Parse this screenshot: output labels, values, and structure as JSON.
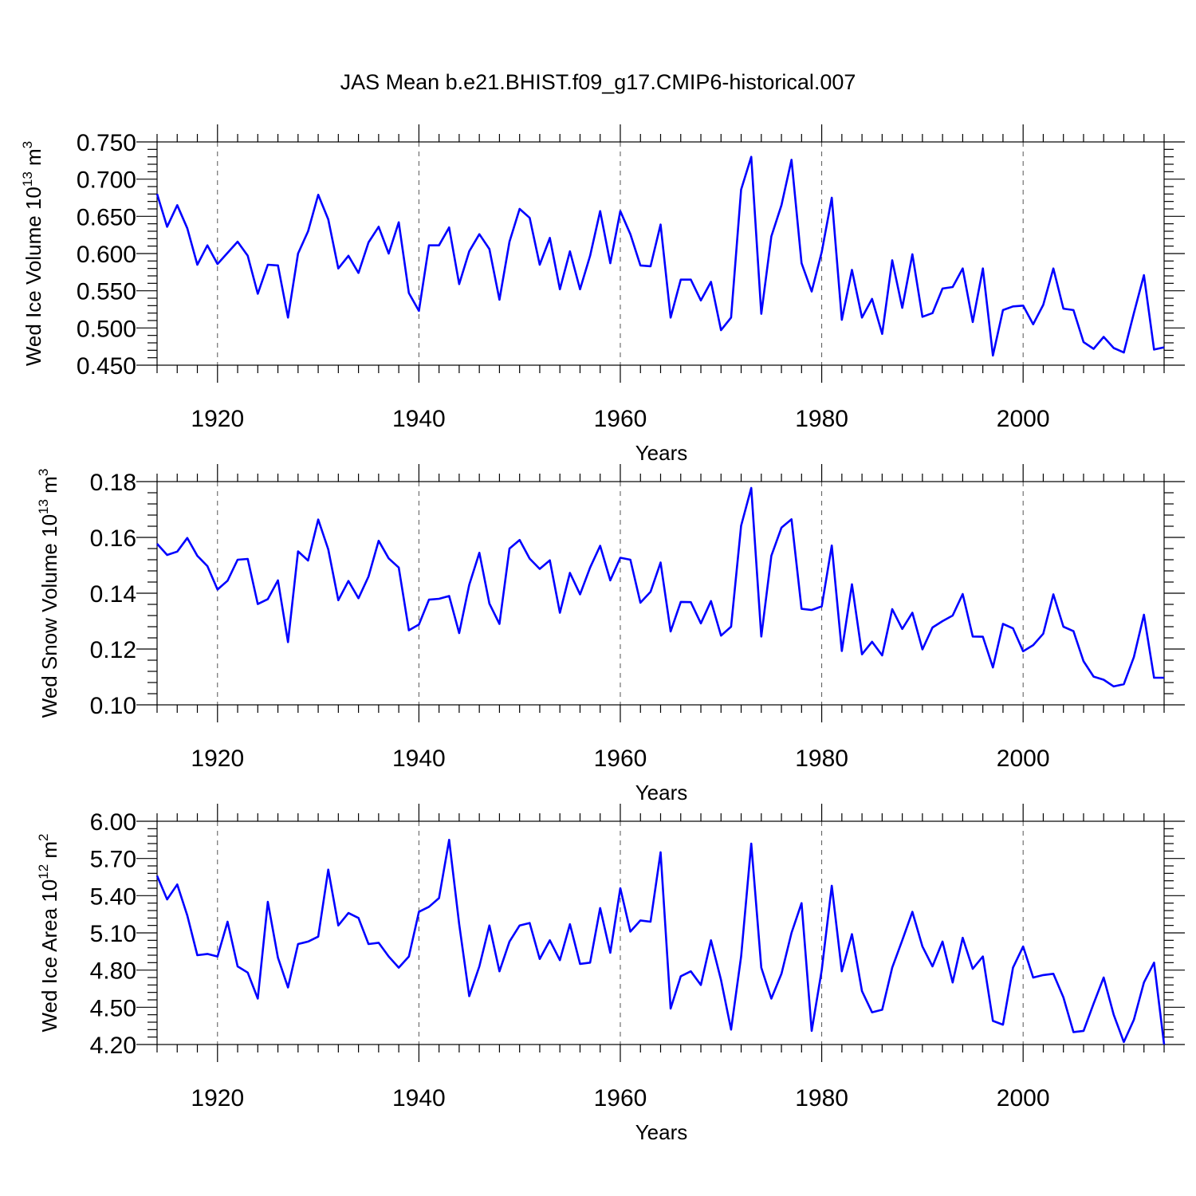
{
  "figure": {
    "title": "JAS Mean b.e21.BHIST.f09_g17.CMIP6-historical.007",
    "line_color": "#0000ff"
  },
  "chart_data": [
    {
      "type": "line",
      "title": "JAS Mean b.e21.BHIST.f09_g17.CMIP6-historical.007",
      "xlabel": "Years",
      "ylabel": "Wed Ice Volume 10",
      "ylabel_sup": "13",
      "ylabel_unit": " m",
      "ylabel_unit_sup": "3",
      "xlim": [
        1914,
        2014
      ],
      "ylim": [
        0.45,
        0.75
      ],
      "yticks": [
        0.45,
        0.5,
        0.55,
        0.6,
        0.65,
        0.7,
        0.75
      ],
      "ytick_labels": [
        "0.450",
        "0.500",
        "0.550",
        "0.600",
        "0.650",
        "0.700",
        "0.750"
      ],
      "xticks": [
        1920,
        1940,
        1960,
        1980,
        2000
      ],
      "xtick_labels": [
        "1920",
        "1940",
        "1960",
        "1980",
        "2000"
      ],
      "series": [
        {
          "name": "Wed Ice Volume",
          "x_start": 1914,
          "values": [
            0.68,
            0.636,
            0.665,
            0.634,
            0.585,
            0.611,
            0.586,
            0.601,
            0.616,
            0.597,
            0.546,
            0.585,
            0.584,
            0.514,
            0.6,
            0.63,
            0.679,
            0.646,
            0.58,
            0.597,
            0.574,
            0.615,
            0.636,
            0.6,
            0.642,
            0.547,
            0.523,
            0.611,
            0.611,
            0.635,
            0.559,
            0.603,
            0.626,
            0.606,
            0.538,
            0.616,
            0.66,
            0.648,
            0.585,
            0.621,
            0.552,
            0.603,
            0.552,
            0.597,
            0.657,
            0.587,
            0.657,
            0.626,
            0.584,
            0.583,
            0.639,
            0.514,
            0.565,
            0.565,
            0.537,
            0.562,
            0.497,
            0.514,
            0.686,
            0.73,
            0.519,
            0.623,
            0.665,
            0.726,
            0.587,
            0.549,
            0.602,
            0.675,
            0.511,
            0.578,
            0.514,
            0.539,
            0.492,
            0.591,
            0.527,
            0.599,
            0.515,
            0.52,
            0.553,
            0.555,
            0.58,
            0.508,
            0.58,
            0.463,
            0.524,
            0.529,
            0.53,
            0.505,
            0.531,
            0.58,
            0.526,
            0.524,
            0.481,
            0.472,
            0.488,
            0.473,
            0.467,
            0.52,
            0.571,
            0.471,
            0.474
          ]
        }
      ]
    },
    {
      "type": "line",
      "xlabel": "Years",
      "ylabel": "Wed Snow Volume 10",
      "ylabel_sup": "13",
      "ylabel_unit": " m",
      "ylabel_unit_sup": "3",
      "xlim": [
        1914,
        2014
      ],
      "ylim": [
        0.1,
        0.18
      ],
      "yticks": [
        0.1,
        0.12,
        0.14,
        0.16,
        0.18
      ],
      "ytick_labels": [
        "0.10",
        "0.12",
        "0.14",
        "0.16",
        "0.18"
      ],
      "xticks": [
        1920,
        1940,
        1960,
        1980,
        2000
      ],
      "xtick_labels": [
        "1920",
        "1940",
        "1960",
        "1980",
        "2000"
      ],
      "series": [
        {
          "name": "Wed Snow Volume",
          "x_start": 1914,
          "values": [
            0.1577,
            0.1537,
            0.1549,
            0.1598,
            0.1534,
            0.1497,
            0.1413,
            0.1445,
            0.152,
            0.1523,
            0.1361,
            0.1379,
            0.1446,
            0.1225,
            0.155,
            0.1517,
            0.1664,
            0.1557,
            0.1375,
            0.1444,
            0.1382,
            0.146,
            0.1588,
            0.1525,
            0.1492,
            0.1267,
            0.1288,
            0.1377,
            0.138,
            0.139,
            0.1257,
            0.143,
            0.1545,
            0.1363,
            0.129,
            0.156,
            0.1591,
            0.1524,
            0.1487,
            0.1518,
            0.133,
            0.1473,
            0.1396,
            0.1492,
            0.157,
            0.1446,
            0.1527,
            0.152,
            0.1366,
            0.1405,
            0.151,
            0.1263,
            0.1369,
            0.1368,
            0.1292,
            0.1372,
            0.1248,
            0.128,
            0.1642,
            0.1777,
            0.1245,
            0.1534,
            0.1635,
            0.1665,
            0.1344,
            0.134,
            0.1353,
            0.1571,
            0.1193,
            0.1432,
            0.1181,
            0.1226,
            0.1177,
            0.1343,
            0.1272,
            0.133,
            0.1199,
            0.1277,
            0.13,
            0.132,
            0.1397,
            0.1245,
            0.1244,
            0.1134,
            0.129,
            0.1274,
            0.1192,
            0.1214,
            0.1255,
            0.1396,
            0.128,
            0.1264,
            0.1156,
            0.1101,
            0.109,
            0.1066,
            0.1074,
            0.1171,
            0.1323,
            0.1097,
            0.1097
          ]
        }
      ]
    },
    {
      "type": "line",
      "xlabel": "Years",
      "ylabel": "Wed Ice Area 10",
      "ylabel_sup": "12",
      "ylabel_unit": " m",
      "ylabel_unit_sup": "2",
      "xlim": [
        1914,
        2014
      ],
      "ylim": [
        4.2,
        6.0
      ],
      "yticks": [
        4.2,
        4.5,
        4.8,
        5.1,
        5.4,
        5.7,
        6.0
      ],
      "ytick_labels": [
        "4.20",
        "4.50",
        "4.80",
        "5.10",
        "5.40",
        "5.70",
        "6.00"
      ],
      "xticks": [
        1920,
        1940,
        1960,
        1980,
        2000
      ],
      "xtick_labels": [
        "1920",
        "1940",
        "1960",
        "1980",
        "2000"
      ],
      "series": [
        {
          "name": "Wed Ice Area",
          "x_start": 1914,
          "values": [
            5.56,
            5.37,
            5.49,
            5.24,
            4.92,
            4.93,
            4.91,
            5.19,
            4.83,
            4.78,
            4.57,
            5.35,
            4.9,
            4.66,
            5.01,
            5.03,
            5.07,
            5.61,
            5.16,
            5.26,
            5.22,
            5.01,
            5.02,
            4.91,
            4.82,
            4.91,
            5.27,
            5.31,
            5.38,
            5.85,
            5.17,
            4.59,
            4.83,
            5.16,
            4.79,
            5.03,
            5.16,
            5.18,
            4.89,
            5.04,
            4.88,
            5.17,
            4.85,
            4.86,
            5.3,
            4.94,
            5.46,
            5.11,
            5.2,
            5.19,
            5.75,
            4.49,
            4.75,
            4.79,
            4.68,
            5.04,
            4.72,
            4.32,
            4.91,
            5.82,
            4.82,
            4.57,
            4.77,
            5.1,
            5.34,
            4.31,
            4.8,
            5.48,
            4.79,
            5.09,
            4.63,
            4.46,
            4.48,
            4.82,
            5.04,
            5.27,
            4.99,
            4.83,
            5.03,
            4.7,
            5.06,
            4.81,
            4.91,
            4.39,
            4.36,
            4.82,
            4.99,
            4.74,
            4.76,
            4.77,
            4.58,
            4.3,
            4.31,
            4.53,
            4.74,
            4.44,
            4.22,
            4.4,
            4.7,
            4.86,
            4.2
          ]
        }
      ]
    }
  ]
}
